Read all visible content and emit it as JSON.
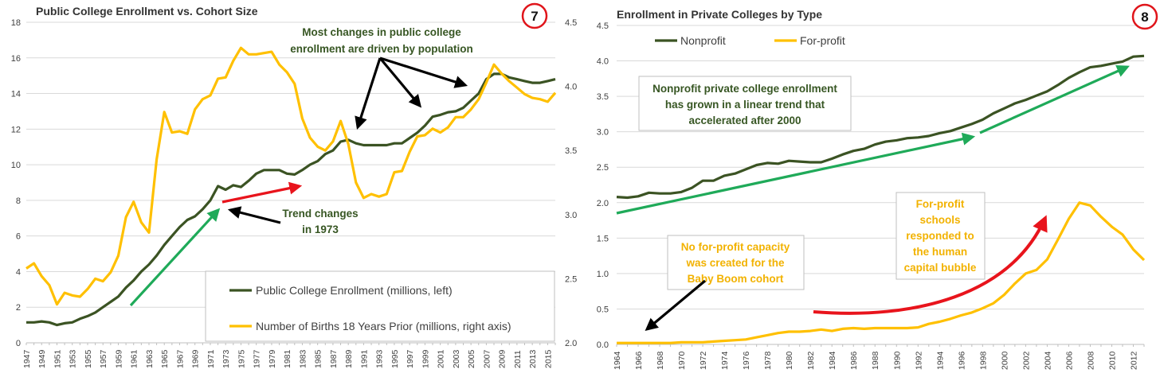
{
  "colors": {
    "dark_green": "#3b5323",
    "gold": "#ffc000",
    "arrow_green": "#1faa59",
    "arrow_red": "#e8141c",
    "arrow_black": "#000000",
    "ann_green": "#375623",
    "ann_gold": "#f2b200",
    "badge_red": "#e0151b",
    "grid": "#d9d9d9"
  },
  "charts": [
    {
      "id": "c7",
      "badge": "7",
      "chart_data": {
        "type": "line",
        "title": "Public College Enrollment vs. Cohort Size",
        "ylim_left": [
          0,
          18
        ],
        "ylim_right": [
          2.0,
          4.5
        ],
        "yticks_left": [
          "0",
          "2",
          "4",
          "6",
          "8",
          "10",
          "12",
          "14",
          "16",
          "18"
        ],
        "yticks_right": [
          "2.0",
          "2.5",
          "3.0",
          "3.5",
          "4.0",
          "4.5"
        ],
        "xrange": [
          1947,
          2016
        ],
        "xtick_labels": [
          "1947",
          "1949",
          "1951",
          "1953",
          "1955",
          "1957",
          "1959",
          "1961",
          "1963",
          "1965",
          "1967",
          "1969",
          "1971",
          "1973",
          "1975",
          "1977",
          "1979",
          "1981",
          "1983",
          "1985",
          "1987",
          "1989",
          "1991",
          "1993",
          "1995",
          "1997",
          "1999",
          "2001",
          "2003",
          "2005",
          "2007",
          "2009",
          "2011",
          "2013",
          "2015"
        ],
        "grid": true,
        "legend_position": "bottom-right",
        "series": [
          {
            "name": "Public College Enrollment (millions, left)",
            "axis": "left",
            "color": "#3b5323",
            "x": [
              1947,
              1948,
              1949,
              1950,
              1951,
              1952,
              1953,
              1954,
              1955,
              1956,
              1957,
              1958,
              1959,
              1960,
              1961,
              1962,
              1963,
              1964,
              1965,
              1966,
              1967,
              1968,
              1969,
              1970,
              1971,
              1972,
              1973,
              1974,
              1975,
              1976,
              1977,
              1978,
              1979,
              1980,
              1981,
              1982,
              1983,
              1984,
              1985,
              1986,
              1987,
              1988,
              1989,
              1990,
              1991,
              1992,
              1993,
              1994,
              1995,
              1996,
              1997,
              1998,
              1999,
              2000,
              2001,
              2002,
              2003,
              2004,
              2005,
              2006,
              2007,
              2008,
              2009,
              2010,
              2011,
              2012,
              2013,
              2014,
              2015,
              2016
            ],
            "y": [
              1.15,
              1.15,
              1.2,
              1.15,
              1.0,
              1.1,
              1.15,
              1.35,
              1.5,
              1.7,
              2.0,
              2.3,
              2.6,
              3.1,
              3.5,
              4.0,
              4.4,
              4.9,
              5.5,
              6.0,
              6.5,
              6.9,
              7.1,
              7.5,
              8.0,
              8.8,
              8.6,
              8.85,
              8.75,
              9.1,
              9.5,
              9.7,
              9.7,
              9.7,
              9.5,
              9.45,
              9.7,
              10.0,
              10.2,
              10.6,
              10.8,
              11.3,
              11.4,
              11.2,
              11.1,
              11.1,
              11.1,
              11.1,
              11.2,
              11.2,
              11.5,
              11.8,
              12.2,
              12.7,
              12.8,
              12.95,
              13.0,
              13.2,
              13.6,
              14.0,
              14.8,
              15.1,
              15.1,
              14.9,
              14.8,
              14.7,
              14.6,
              14.6,
              14.7,
              14.8
            ]
          },
          {
            "name": "Number of Births 18 Years Prior (millions, right axis)",
            "axis": "right",
            "color": "#ffc000",
            "x": [
              1947,
              1948,
              1949,
              1950,
              1951,
              1952,
              1953,
              1954,
              1955,
              1956,
              1957,
              1958,
              1959,
              1960,
              1961,
              1962,
              1963,
              1964,
              1965,
              1966,
              1967,
              1968,
              1969,
              1970,
              1971,
              1972,
              1973,
              1974,
              1975,
              1976,
              1977,
              1978,
              1979,
              1980,
              1981,
              1982,
              1983,
              1984,
              1985,
              1986,
              1987,
              1988,
              1989,
              1990,
              1991,
              1992,
              1993,
              1994,
              1995,
              1996,
              1997,
              1998,
              1999,
              2000,
              2001,
              2002,
              2003,
              2004,
              2005,
              2006,
              2007,
              2008,
              2009,
              2010,
              2011,
              2012,
              2013,
              2014,
              2015,
              2016
            ],
            "y": [
              2.58,
              2.62,
              2.52,
              2.45,
              2.3,
              2.39,
              2.37,
              2.36,
              2.42,
              2.5,
              2.48,
              2.55,
              2.68,
              2.98,
              3.1,
              2.94,
              2.86,
              3.43,
              3.8,
              3.64,
              3.65,
              3.63,
              3.82,
              3.9,
              3.93,
              4.06,
              4.07,
              4.2,
              4.3,
              4.25,
              4.25,
              4.26,
              4.27,
              4.17,
              4.11,
              4.02,
              3.75,
              3.6,
              3.53,
              3.5,
              3.57,
              3.73,
              3.55,
              3.25,
              3.13,
              3.16,
              3.14,
              3.16,
              3.33,
              3.34,
              3.49,
              3.61,
              3.62,
              3.67,
              3.64,
              3.68,
              3.76,
              3.76,
              3.82,
              3.9,
              4.03,
              4.17,
              4.1,
              4.04,
              3.99,
              3.94,
              3.91,
              3.9,
              3.88,
              3.95
            ]
          }
        ]
      },
      "annotations": {
        "population_note": [
          "Most changes in public college",
          "enrollment are driven by population"
        ],
        "trend_note": [
          "Trend changes",
          "in 1973"
        ]
      }
    },
    {
      "id": "c8",
      "badge": "8",
      "chart_data": {
        "type": "line",
        "title": "Enrollment in Private Colleges by Type",
        "ylim": [
          0,
          4.5
        ],
        "yticks": [
          "0.0",
          "0.5",
          "1.0",
          "1.5",
          "2.0",
          "2.5",
          "3.0",
          "3.5",
          "4.0",
          "4.5"
        ],
        "xrange": [
          1964,
          2013
        ],
        "xtick_labels": [
          "1964",
          "1966",
          "1968",
          "1970",
          "1972",
          "1974",
          "1976",
          "1978",
          "1980",
          "1982",
          "1984",
          "1986",
          "1988",
          "1990",
          "1992",
          "1994",
          "1996",
          "1998",
          "2000",
          "2002",
          "2004",
          "2006",
          "2008",
          "2010",
          "2012"
        ],
        "grid": true,
        "legend_position": "top-left",
        "series": [
          {
            "name": "Nonprofit",
            "color": "#3b5323",
            "x": [
              1964,
              1965,
              1966,
              1967,
              1968,
              1969,
              1970,
              1971,
              1972,
              1973,
              1974,
              1975,
              1976,
              1977,
              1978,
              1979,
              1980,
              1981,
              1982,
              1983,
              1984,
              1985,
              1986,
              1987,
              1988,
              1989,
              1990,
              1991,
              1992,
              1993,
              1994,
              1995,
              1996,
              1997,
              1998,
              1999,
              2000,
              2001,
              2002,
              2003,
              2004,
              2005,
              2006,
              2007,
              2008,
              2009,
              2010,
              2011,
              2012,
              2013
            ],
            "y": [
              2.08,
              2.07,
              2.09,
              2.14,
              2.13,
              2.13,
              2.15,
              2.21,
              2.31,
              2.31,
              2.38,
              2.41,
              2.47,
              2.53,
              2.56,
              2.55,
              2.59,
              2.58,
              2.57,
              2.57,
              2.62,
              2.68,
              2.73,
              2.76,
              2.82,
              2.86,
              2.88,
              2.91,
              2.92,
              2.94,
              2.98,
              3.01,
              3.06,
              3.11,
              3.17,
              3.26,
              3.33,
              3.4,
              3.45,
              3.51,
              3.57,
              3.66,
              3.76,
              3.84,
              3.91,
              3.93,
              3.96,
              3.99,
              4.06,
              4.07
            ]
          },
          {
            "name": "For-profit",
            "color": "#ffc000",
            "x": [
              1964,
              1965,
              1966,
              1967,
              1968,
              1969,
              1970,
              1971,
              1972,
              1973,
              1974,
              1975,
              1976,
              1977,
              1978,
              1979,
              1980,
              1981,
              1982,
              1983,
              1984,
              1985,
              1986,
              1987,
              1988,
              1989,
              1990,
              1991,
              1992,
              1993,
              1994,
              1995,
              1996,
              1997,
              1998,
              1999,
              2000,
              2001,
              2002,
              2003,
              2004,
              2005,
              2006,
              2007,
              2008,
              2009,
              2010,
              2011,
              2012,
              2013
            ],
            "y": [
              0.02,
              0.02,
              0.02,
              0.02,
              0.02,
              0.02,
              0.03,
              0.03,
              0.03,
              0.04,
              0.05,
              0.06,
              0.07,
              0.1,
              0.13,
              0.16,
              0.18,
              0.18,
              0.19,
              0.21,
              0.19,
              0.22,
              0.23,
              0.22,
              0.23,
              0.23,
              0.23,
              0.23,
              0.24,
              0.29,
              0.32,
              0.36,
              0.41,
              0.45,
              0.51,
              0.58,
              0.7,
              0.86,
              1.0,
              1.05,
              1.2,
              1.48,
              1.77,
              2.0,
              1.96,
              1.8,
              1.66,
              1.55,
              1.34,
              1.19
            ]
          }
        ]
      },
      "annotations": {
        "nonprofit_note": [
          "Nonprofit private college enrollment",
          "has grown in a linear trend that",
          "accelerated after 2000"
        ],
        "forprofit_note": [
          "For-profit",
          "schools",
          "responded to",
          "the human",
          "capital bubble"
        ],
        "capacity_note": [
          "No for-profit capacity",
          "was created for the",
          "Baby Boom cohort"
        ]
      }
    }
  ]
}
